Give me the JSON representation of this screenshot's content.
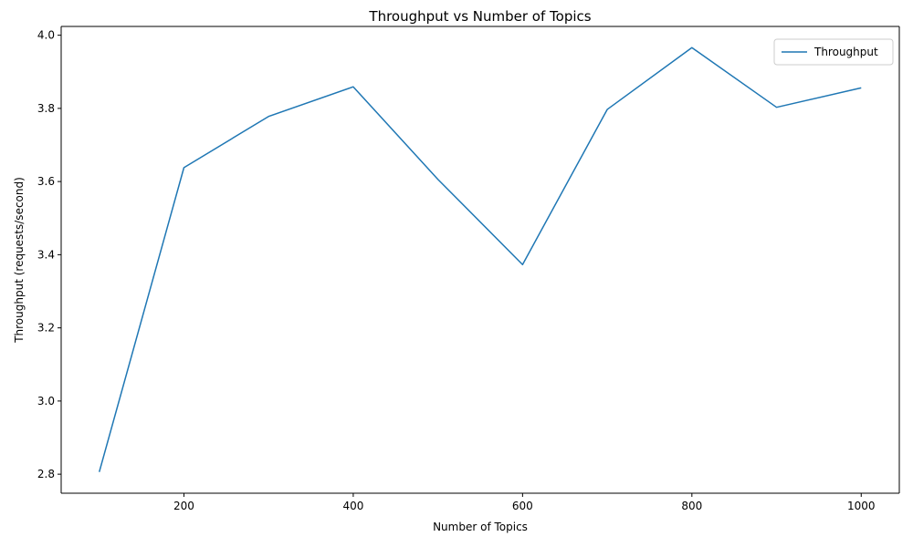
{
  "chart_data": {
    "type": "line",
    "title": "Throughput vs Number of Topics",
    "xlabel": "Number of Topics",
    "ylabel": "Throughput (requests/second)",
    "x": [
      100,
      200,
      300,
      400,
      500,
      600,
      700,
      800,
      900,
      1000
    ],
    "series": [
      {
        "name": "Throughput",
        "color": "#1f77b4",
        "values": [
          2.806,
          3.638,
          3.778,
          3.859,
          3.606,
          3.373,
          3.797,
          3.966,
          3.803,
          3.856
        ]
      }
    ],
    "xlim": [
      55,
      1045
    ],
    "ylim": [
      2.748,
      4.024
    ],
    "x_ticks": [
      200,
      400,
      600,
      800,
      1000
    ],
    "x_tick_labels": [
      "200",
      "400",
      "600",
      "800",
      "1000"
    ],
    "y_ticks": [
      2.8,
      3.0,
      3.2,
      3.4,
      3.6,
      3.8,
      4.0
    ],
    "y_tick_labels": [
      "2.8",
      "3.0",
      "3.2",
      "3.4",
      "3.6",
      "3.8",
      "4.0"
    ],
    "grid": false,
    "legend_position": "top-right"
  }
}
